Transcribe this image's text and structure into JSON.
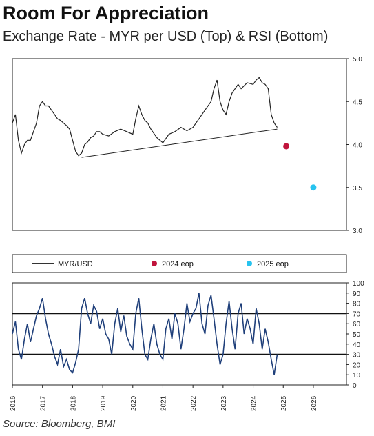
{
  "title": "Room For Appreciation",
  "subtitle": "Exchange Rate - MYR per USD (Top) & RSI (Bottom)",
  "source": "Source: Bloomberg, BMI",
  "colors": {
    "line": "#222222",
    "rsi": "#1f3f7a",
    "eop2024": "#c0143c",
    "eop2025": "#27c3ef"
  },
  "chart_data": [
    {
      "type": "line",
      "panel": "top",
      "ylim": [
        3.0,
        5.0
      ],
      "yticks": [
        "3.0",
        "3.5",
        "4.0",
        "4.5",
        "5.0"
      ],
      "xlim": [
        2016,
        2027.1
      ],
      "series": [
        {
          "name": "MYR/USD",
          "x": [
            2016.0,
            2016.1,
            2016.2,
            2016.3,
            2016.4,
            2016.5,
            2016.6,
            2016.7,
            2016.8,
            2016.9,
            2017.0,
            2017.1,
            2017.2,
            2017.3,
            2017.4,
            2017.5,
            2017.6,
            2017.7,
            2017.8,
            2017.9,
            2018.0,
            2018.1,
            2018.2,
            2018.3,
            2018.4,
            2018.5,
            2018.6,
            2018.7,
            2018.8,
            2018.9,
            2019.0,
            2019.2,
            2019.4,
            2019.6,
            2019.8,
            2020.0,
            2020.1,
            2020.2,
            2020.3,
            2020.4,
            2020.5,
            2020.6,
            2020.8,
            2021.0,
            2021.2,
            2021.4,
            2021.6,
            2021.8,
            2022.0,
            2022.2,
            2022.4,
            2022.6,
            2022.7,
            2022.8,
            2022.9,
            2023.0,
            2023.1,
            2023.2,
            2023.3,
            2023.4,
            2023.5,
            2023.6,
            2023.8,
            2024.0,
            2024.1,
            2024.2,
            2024.3,
            2024.4,
            2024.5,
            2024.6,
            2024.7,
            2024.8
          ],
          "y": [
            4.25,
            4.35,
            4.05,
            3.9,
            4.0,
            4.05,
            4.05,
            4.15,
            4.25,
            4.45,
            4.5,
            4.45,
            4.45,
            4.4,
            4.35,
            4.3,
            4.28,
            4.25,
            4.22,
            4.18,
            4.05,
            3.92,
            3.87,
            3.9,
            4.0,
            4.03,
            4.08,
            4.1,
            4.15,
            4.15,
            4.12,
            4.1,
            4.15,
            4.18,
            4.15,
            4.12,
            4.3,
            4.45,
            4.35,
            4.28,
            4.25,
            4.18,
            4.08,
            4.02,
            4.12,
            4.15,
            4.2,
            4.16,
            4.2,
            4.3,
            4.4,
            4.5,
            4.65,
            4.75,
            4.5,
            4.4,
            4.35,
            4.5,
            4.6,
            4.65,
            4.7,
            4.65,
            4.72,
            4.7,
            4.75,
            4.78,
            4.72,
            4.7,
            4.65,
            4.35,
            4.25,
            4.2
          ]
        }
      ],
      "trendline": {
        "x": [
          2018.3,
          2024.8
        ],
        "y": [
          3.85,
          4.18
        ]
      },
      "points": [
        {
          "name": "2024 eop",
          "x": 2025.1,
          "y": 3.98
        },
        {
          "name": "2025 eop",
          "x": 2026.0,
          "y": 3.5
        }
      ]
    },
    {
      "type": "line",
      "panel": "bottom",
      "ylim": [
        0,
        100
      ],
      "yticks": [
        "0",
        "10",
        "20",
        "30",
        "40",
        "50",
        "60",
        "70",
        "80",
        "90",
        "100"
      ],
      "xlim": [
        2016,
        2027.1
      ],
      "xticks": [
        "2016",
        "2017",
        "2018",
        "2019",
        "2020",
        "2021",
        "2022",
        "2023",
        "2024",
        "2025",
        "2026"
      ],
      "reference_lines": [
        30,
        70
      ],
      "series": [
        {
          "name": "RSI",
          "x": [
            2016.0,
            2016.1,
            2016.2,
            2016.3,
            2016.4,
            2016.5,
            2016.6,
            2016.7,
            2016.8,
            2016.9,
            2017.0,
            2017.1,
            2017.2,
            2017.3,
            2017.4,
            2017.5,
            2017.6,
            2017.7,
            2017.8,
            2017.9,
            2018.0,
            2018.1,
            2018.2,
            2018.3,
            2018.4,
            2018.5,
            2018.6,
            2018.7,
            2018.8,
            2018.9,
            2019.0,
            2019.1,
            2019.2,
            2019.3,
            2019.4,
            2019.5,
            2019.6,
            2019.7,
            2019.8,
            2019.9,
            2020.0,
            2020.1,
            2020.2,
            2020.3,
            2020.4,
            2020.5,
            2020.6,
            2020.7,
            2020.8,
            2020.9,
            2021.0,
            2021.1,
            2021.2,
            2021.3,
            2021.4,
            2021.5,
            2021.6,
            2021.7,
            2021.8,
            2021.9,
            2022.0,
            2022.1,
            2022.2,
            2022.3,
            2022.4,
            2022.5,
            2022.6,
            2022.7,
            2022.8,
            2022.9,
            2023.0,
            2023.1,
            2023.2,
            2023.3,
            2023.4,
            2023.5,
            2023.6,
            2023.7,
            2023.8,
            2023.9,
            2024.0,
            2024.1,
            2024.2,
            2024.3,
            2024.4,
            2024.5,
            2024.6,
            2024.7,
            2024.8
          ],
          "y": [
            50,
            62,
            35,
            25,
            45,
            60,
            42,
            55,
            68,
            75,
            85,
            65,
            50,
            40,
            28,
            20,
            35,
            18,
            25,
            15,
            12,
            22,
            35,
            75,
            85,
            70,
            60,
            78,
            72,
            55,
            65,
            50,
            45,
            30,
            60,
            75,
            52,
            68,
            48,
            40,
            35,
            70,
            85,
            55,
            30,
            25,
            45,
            60,
            40,
            30,
            25,
            55,
            65,
            45,
            70,
            60,
            35,
            55,
            80,
            62,
            70,
            75,
            90,
            60,
            50,
            78,
            88,
            65,
            40,
            20,
            30,
            60,
            82,
            55,
            35,
            70,
            80,
            50,
            65,
            55,
            40,
            75,
            60,
            35,
            55,
            42,
            25,
            10,
            30
          ]
        }
      ]
    }
  ],
  "legend": [
    {
      "label": "MYR/USD",
      "kind": "line"
    },
    {
      "label": "2024 eop",
      "kind": "dot"
    },
    {
      "label": "2025 eop",
      "kind": "dot"
    }
  ]
}
